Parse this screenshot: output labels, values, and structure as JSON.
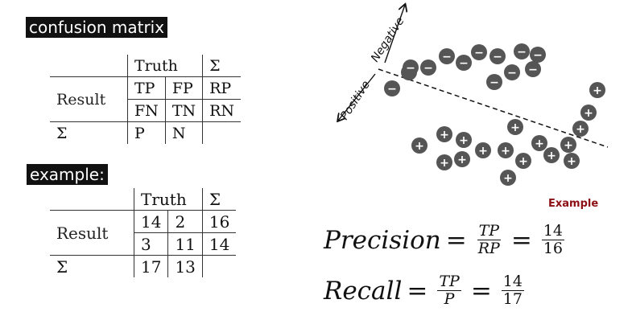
{
  "section_tags": {
    "confusion": "confusion matrix",
    "example": "example:"
  },
  "matrix": {
    "truth_header": "Truth",
    "sigma": "Σ",
    "result_label": "Result",
    "tp": "TP",
    "fp": "FP",
    "rp": "RP",
    "fn": "FN",
    "tn": "TN",
    "rn": "RN",
    "p": "P",
    "n": "N"
  },
  "example_matrix": {
    "truth_header": "Truth",
    "sigma": "Σ",
    "result_label": "Result",
    "tp": "14",
    "fp": "2",
    "rp": "16",
    "fn": "3",
    "tn": "11",
    "rn": "14",
    "p": "17",
    "n": "13"
  },
  "scatter": {
    "negative_label": "Negative",
    "positive_label": "Positive",
    "caption": "Example",
    "negative_marker": "−",
    "positive_marker": "+",
    "marker_color": "#555555"
  },
  "formulas": {
    "precision_word": "Precision",
    "precision_num": "TP",
    "precision_den": "RP",
    "precision_val_num": "14",
    "precision_val_den": "16",
    "recall_word": "Recall",
    "recall_num": "TP",
    "recall_den": "P",
    "recall_val_num": "14",
    "recall_val_den": "17",
    "equals": "="
  }
}
